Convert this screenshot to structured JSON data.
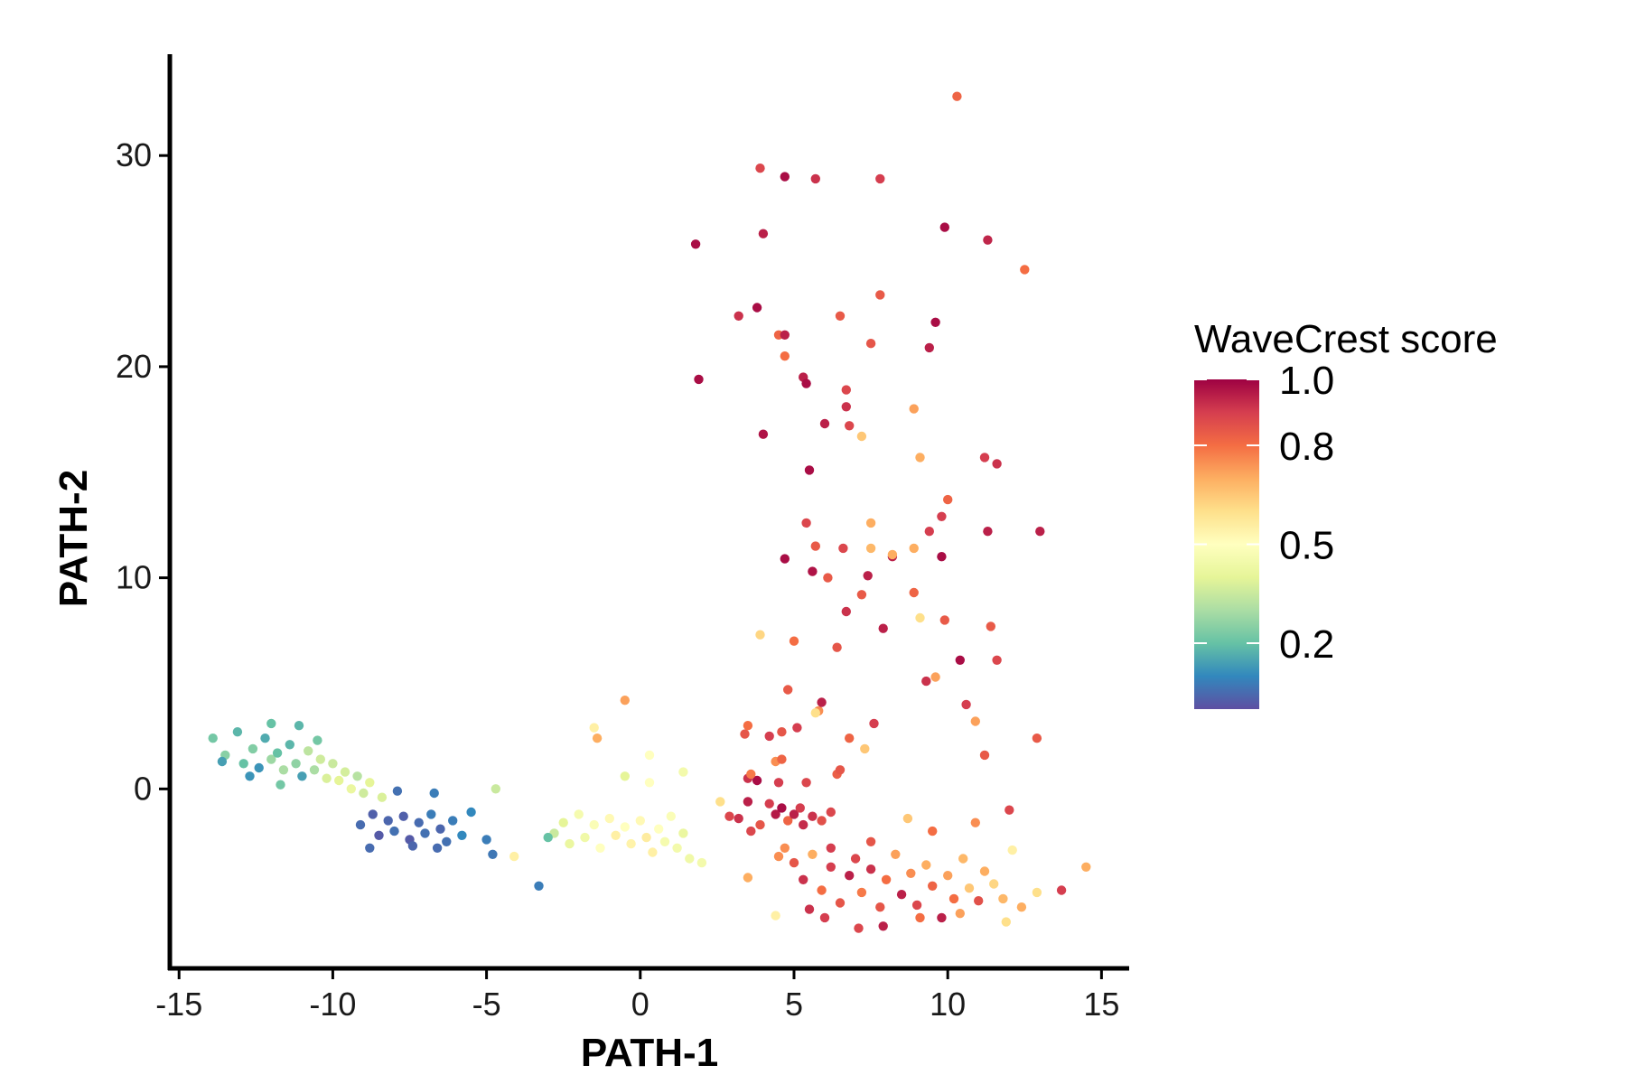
{
  "chart_data": {
    "type": "scatter",
    "xlabel": "PATH-1",
    "ylabel": "PATH-2",
    "xlim": [
      -15.3,
      15.9
    ],
    "ylim": [
      -8.5,
      34.8
    ],
    "x_ticks": [
      -15,
      -10,
      -5,
      0,
      5,
      10,
      15
    ],
    "x_tick_labels": [
      "-15",
      "-10",
      "-5",
      "0",
      "5",
      "10",
      "15"
    ],
    "y_ticks": [
      0,
      10,
      20,
      30
    ],
    "y_tick_labels": [
      "0",
      "10",
      "20",
      "30"
    ],
    "grid": false,
    "legend": {
      "title": "WaveCrest score",
      "placement": "right",
      "colorscale": "Spectral (reversed)",
      "range": [
        0,
        1
      ],
      "tick_values": [
        1.0,
        0.8,
        0.5,
        0.2
      ],
      "tick_labels": [
        "1.0",
        "0.8",
        "0.5",
        "0.2"
      ]
    },
    "colors": [
      "#5E4FA2",
      "#3288BD",
      "#66C2A5",
      "#ABDDA4",
      "#E6F598",
      "#FFFFBF",
      "#FEE08B",
      "#FDAE61",
      "#F46D43",
      "#D53E4F",
      "#9E0142"
    ],
    "points": [
      [
        -13.9,
        2.4,
        0.22
      ],
      [
        -13.5,
        1.6,
        0.25
      ],
      [
        -13.1,
        2.7,
        0.18
      ],
      [
        -12.9,
        1.2,
        0.2
      ],
      [
        -12.6,
        1.9,
        0.24
      ],
      [
        -12.4,
        1.0,
        0.12
      ],
      [
        -12.2,
        2.4,
        0.16
      ],
      [
        -12.0,
        1.4,
        0.28
      ],
      [
        -11.8,
        1.7,
        0.2
      ],
      [
        -11.6,
        0.9,
        0.3
      ],
      [
        -11.4,
        2.1,
        0.18
      ],
      [
        -11.2,
        1.2,
        0.26
      ],
      [
        -11.0,
        0.6,
        0.14
      ],
      [
        -10.8,
        1.8,
        0.33
      ],
      [
        -10.6,
        0.9,
        0.3
      ],
      [
        -10.4,
        1.4,
        0.36
      ],
      [
        -10.2,
        0.5,
        0.38
      ],
      [
        -10.0,
        1.2,
        0.35
      ],
      [
        -9.8,
        0.4,
        0.4
      ],
      [
        -9.6,
        0.8,
        0.37
      ],
      [
        -9.4,
        0.0,
        0.42
      ],
      [
        -9.2,
        0.6,
        0.32
      ],
      [
        -9.0,
        -0.2,
        0.36
      ],
      [
        -8.8,
        0.3,
        0.4
      ],
      [
        -8.4,
        -0.4,
        0.38
      ],
      [
        -12.0,
        3.1,
        0.2
      ],
      [
        -11.1,
        3.0,
        0.18
      ],
      [
        -10.5,
        2.3,
        0.22
      ],
      [
        -13.6,
        1.3,
        0.14
      ],
      [
        -12.7,
        0.6,
        0.12
      ],
      [
        -11.7,
        0.2,
        0.22
      ],
      [
        -9.1,
        -1.7,
        0.05
      ],
      [
        -8.7,
        -1.2,
        0.03
      ],
      [
        -8.5,
        -2.2,
        0.02
      ],
      [
        -8.2,
        -1.5,
        0.04
      ],
      [
        -8.0,
        -2.0,
        0.06
      ],
      [
        -7.7,
        -1.3,
        0.03
      ],
      [
        -7.5,
        -2.4,
        0.02
      ],
      [
        -7.2,
        -1.6,
        0.05
      ],
      [
        -7.0,
        -2.1,
        0.06
      ],
      [
        -6.8,
        -1.2,
        0.08
      ],
      [
        -6.5,
        -1.9,
        0.04
      ],
      [
        -6.3,
        -2.5,
        0.06
      ],
      [
        -6.1,
        -1.5,
        0.08
      ],
      [
        -5.8,
        -2.2,
        0.1
      ],
      [
        -8.8,
        -2.8,
        0.05
      ],
      [
        -7.4,
        -2.7,
        0.04
      ],
      [
        -6.6,
        -2.8,
        0.05
      ],
      [
        -5.5,
        -1.1,
        0.1
      ],
      [
        -5.0,
        -2.4,
        0.08
      ],
      [
        -4.8,
        -3.1,
        0.07
      ],
      [
        -3.3,
        -4.6,
        0.08
      ],
      [
        -7.9,
        -0.1,
        0.06
      ],
      [
        -6.7,
        -0.2,
        0.08
      ],
      [
        -4.7,
        0.0,
        0.35
      ],
      [
        -2.8,
        -2.1,
        0.35
      ],
      [
        -2.5,
        -1.6,
        0.4
      ],
      [
        -2.3,
        -2.6,
        0.42
      ],
      [
        -2.0,
        -1.2,
        0.46
      ],
      [
        -1.8,
        -2.3,
        0.44
      ],
      [
        -1.5,
        -1.7,
        0.48
      ],
      [
        -1.3,
        -2.8,
        0.5
      ],
      [
        -1.0,
        -1.4,
        0.52
      ],
      [
        -0.8,
        -2.2,
        0.55
      ],
      [
        -0.5,
        -1.8,
        0.5
      ],
      [
        -0.3,
        -2.6,
        0.54
      ],
      [
        0.0,
        -1.5,
        0.52
      ],
      [
        0.2,
        -2.3,
        0.56
      ],
      [
        0.4,
        -3.0,
        0.55
      ],
      [
        0.6,
        -1.9,
        0.5
      ],
      [
        0.8,
        -2.5,
        0.46
      ],
      [
        1.0,
        -1.3,
        0.48
      ],
      [
        1.2,
        -2.8,
        0.45
      ],
      [
        1.4,
        -2.1,
        0.42
      ],
      [
        1.6,
        -3.3,
        0.44
      ],
      [
        -0.5,
        0.6,
        0.4
      ],
      [
        0.3,
        0.3,
        0.5
      ],
      [
        1.4,
        0.8,
        0.45
      ],
      [
        -1.5,
        2.9,
        0.55
      ],
      [
        -1.4,
        2.4,
        0.7
      ],
      [
        -0.5,
        4.2,
        0.72
      ],
      [
        0.3,
        1.6,
        0.5
      ],
      [
        -3.0,
        -2.3,
        0.2
      ],
      [
        -4.1,
        -3.2,
        0.55
      ],
      [
        2.0,
        -3.5,
        0.45
      ],
      [
        2.6,
        -0.6,
        0.6
      ],
      [
        2.9,
        -1.3,
        0.88
      ],
      [
        3.2,
        -1.4,
        0.92
      ],
      [
        3.5,
        0.5,
        0.92
      ],
      [
        3.8,
        0.4,
        0.98
      ],
      [
        3.5,
        -0.6,
        0.95
      ],
      [
        3.6,
        -2.0,
        0.88
      ],
      [
        3.9,
        -1.7,
        0.85
      ],
      [
        4.2,
        -0.7,
        0.9
      ],
      [
        4.4,
        -1.2,
        0.96
      ],
      [
        4.6,
        -0.9,
        0.98
      ],
      [
        4.8,
        -1.5,
        0.82
      ],
      [
        5.0,
        -1.2,
        0.95
      ],
      [
        5.2,
        -0.9,
        0.9
      ],
      [
        5.3,
        -1.7,
        0.93
      ],
      [
        5.6,
        -1.3,
        0.92
      ],
      [
        5.9,
        -1.5,
        0.86
      ],
      [
        6.2,
        -1.1,
        0.88
      ],
      [
        4.5,
        0.3,
        0.9
      ],
      [
        5.4,
        0.3,
        0.88
      ],
      [
        6.4,
        0.7,
        0.83
      ],
      [
        3.4,
        2.6,
        0.85
      ],
      [
        3.6,
        0.7,
        0.78
      ],
      [
        4.2,
        2.5,
        0.9
      ],
      [
        4.6,
        2.7,
        0.85
      ],
      [
        5.1,
        2.9,
        0.9
      ],
      [
        4.4,
        1.3,
        0.75
      ],
      [
        5.8,
        3.7,
        0.75
      ],
      [
        6.8,
        2.4,
        0.82
      ],
      [
        7.6,
        3.1,
        0.9
      ],
      [
        4.7,
        -2.8,
        0.75
      ],
      [
        5.0,
        -3.5,
        0.85
      ],
      [
        5.3,
        -4.3,
        0.92
      ],
      [
        5.6,
        -3.1,
        0.7
      ],
      [
        5.9,
        -4.8,
        0.8
      ],
      [
        6.2,
        -3.7,
        0.9
      ],
      [
        6.5,
        -5.4,
        0.85
      ],
      [
        6.8,
        -4.1,
        0.95
      ],
      [
        7.0,
        -3.3,
        0.88
      ],
      [
        7.2,
        -4.9,
        0.78
      ],
      [
        7.5,
        -3.8,
        0.92
      ],
      [
        7.8,
        -5.6,
        0.85
      ],
      [
        8.0,
        -4.3,
        0.8
      ],
      [
        8.3,
        -3.1,
        0.72
      ],
      [
        8.5,
        -5.0,
        0.95
      ],
      [
        8.8,
        -4.0,
        0.75
      ],
      [
        9.0,
        -5.5,
        0.88
      ],
      [
        9.3,
        -3.6,
        0.7
      ],
      [
        9.5,
        -4.6,
        0.82
      ],
      [
        9.8,
        -6.1,
        0.95
      ],
      [
        10.0,
        -4.1,
        0.72
      ],
      [
        10.2,
        -5.2,
        0.8
      ],
      [
        10.5,
        -3.3,
        0.68
      ],
      [
        10.7,
        -4.7,
        0.65
      ],
      [
        11.0,
        -5.3,
        0.86
      ],
      [
        11.2,
        -3.9,
        0.7
      ],
      [
        11.5,
        -4.5,
        0.62
      ],
      [
        11.8,
        -5.2,
        0.68
      ],
      [
        12.1,
        -2.9,
        0.55
      ],
      [
        12.4,
        -5.6,
        0.7
      ],
      [
        12.9,
        -4.9,
        0.6
      ],
      [
        13.7,
        -4.8,
        0.9
      ],
      [
        14.5,
        -3.7,
        0.7
      ],
      [
        11.9,
        -6.3,
        0.6
      ],
      [
        7.1,
        -6.6,
        0.88
      ],
      [
        7.9,
        -6.5,
        0.95
      ],
      [
        5.5,
        -5.7,
        0.92
      ],
      [
        4.4,
        -6.0,
        0.55
      ],
      [
        3.5,
        -4.2,
        0.7
      ],
      [
        4.5,
        -3.2,
        0.75
      ],
      [
        6.2,
        -2.8,
        0.9
      ],
      [
        7.5,
        -2.5,
        0.85
      ],
      [
        9.5,
        -2.0,
        0.8
      ],
      [
        10.9,
        -1.6,
        0.75
      ],
      [
        12.0,
        -1.0,
        0.88
      ],
      [
        8.7,
        -1.4,
        0.65
      ],
      [
        6.0,
        -6.1,
        0.9
      ],
      [
        9.1,
        -6.1,
        0.8
      ],
      [
        10.4,
        -5.9,
        0.72
      ],
      [
        3.9,
        29.4,
        0.88
      ],
      [
        4.7,
        29.0,
        0.98
      ],
      [
        5.7,
        28.9,
        0.92
      ],
      [
        7.8,
        28.9,
        0.9
      ],
      [
        10.3,
        32.8,
        0.82
      ],
      [
        4.0,
        26.3,
        0.95
      ],
      [
        1.8,
        25.8,
        0.98
      ],
      [
        9.9,
        26.6,
        0.98
      ],
      [
        11.3,
        26.0,
        0.94
      ],
      [
        12.5,
        24.6,
        0.8
      ],
      [
        3.8,
        22.8,
        0.98
      ],
      [
        3.2,
        22.4,
        0.92
      ],
      [
        6.5,
        22.4,
        0.84
      ],
      [
        7.8,
        23.4,
        0.84
      ],
      [
        9.6,
        22.1,
        0.98
      ],
      [
        4.5,
        21.5,
        0.82
      ],
      [
        4.7,
        21.5,
        0.95
      ],
      [
        4.7,
        20.5,
        0.8
      ],
      [
        7.5,
        21.1,
        0.85
      ],
      [
        9.4,
        20.9,
        0.95
      ],
      [
        1.9,
        19.4,
        0.98
      ],
      [
        5.3,
        19.5,
        0.95
      ],
      [
        5.4,
        19.2,
        0.98
      ],
      [
        6.7,
        18.9,
        0.88
      ],
      [
        6.7,
        18.1,
        0.92
      ],
      [
        8.9,
        18.0,
        0.72
      ],
      [
        4.0,
        16.8,
        0.97
      ],
      [
        6.0,
        17.3,
        0.95
      ],
      [
        6.8,
        17.2,
        0.88
      ],
      [
        7.2,
        16.7,
        0.65
      ],
      [
        5.5,
        15.1,
        0.98
      ],
      [
        9.1,
        15.7,
        0.7
      ],
      [
        11.2,
        15.7,
        0.9
      ],
      [
        11.6,
        15.4,
        0.92
      ],
      [
        10.0,
        13.7,
        0.82
      ],
      [
        5.4,
        12.6,
        0.88
      ],
      [
        7.5,
        12.6,
        0.7
      ],
      [
        9.4,
        12.2,
        0.9
      ],
      [
        9.8,
        12.9,
        0.9
      ],
      [
        11.3,
        12.2,
        0.95
      ],
      [
        13.0,
        12.2,
        0.95
      ],
      [
        5.7,
        11.5,
        0.84
      ],
      [
        6.6,
        11.4,
        0.88
      ],
      [
        7.5,
        11.4,
        0.68
      ],
      [
        8.2,
        11.0,
        0.95
      ],
      [
        8.9,
        11.4,
        0.7
      ],
      [
        9.8,
        11.0,
        0.98
      ],
      [
        4.7,
        10.9,
        0.98
      ],
      [
        5.6,
        10.3,
        0.97
      ],
      [
        6.1,
        10.0,
        0.84
      ],
      [
        7.4,
        10.1,
        0.95
      ],
      [
        8.2,
        11.1,
        0.7
      ],
      [
        7.2,
        9.2,
        0.84
      ],
      [
        6.7,
        8.4,
        0.92
      ],
      [
        8.9,
        9.3,
        0.82
      ],
      [
        9.1,
        8.1,
        0.6
      ],
      [
        9.9,
        8.0,
        0.84
      ],
      [
        11.4,
        7.7,
        0.84
      ],
      [
        3.9,
        7.3,
        0.62
      ],
      [
        5.0,
        7.0,
        0.8
      ],
      [
        6.4,
        6.7,
        0.85
      ],
      [
        7.9,
        7.6,
        0.95
      ],
      [
        11.6,
        6.1,
        0.88
      ],
      [
        10.4,
        6.1,
        0.98
      ],
      [
        9.3,
        5.1,
        0.92
      ],
      [
        9.6,
        5.3,
        0.72
      ],
      [
        4.8,
        4.7,
        0.84
      ],
      [
        5.9,
        4.1,
        0.95
      ],
      [
        10.6,
        4.0,
        0.9
      ],
      [
        10.9,
        3.2,
        0.72
      ],
      [
        12.9,
        2.4,
        0.84
      ],
      [
        11.2,
        1.6,
        0.84
      ],
      [
        4.6,
        1.4,
        0.82
      ],
      [
        6.5,
        0.9,
        0.85
      ],
      [
        7.3,
        1.9,
        0.65
      ],
      [
        3.5,
        3.0,
        0.8
      ],
      [
        5.7,
        3.6,
        0.6
      ]
    ]
  }
}
